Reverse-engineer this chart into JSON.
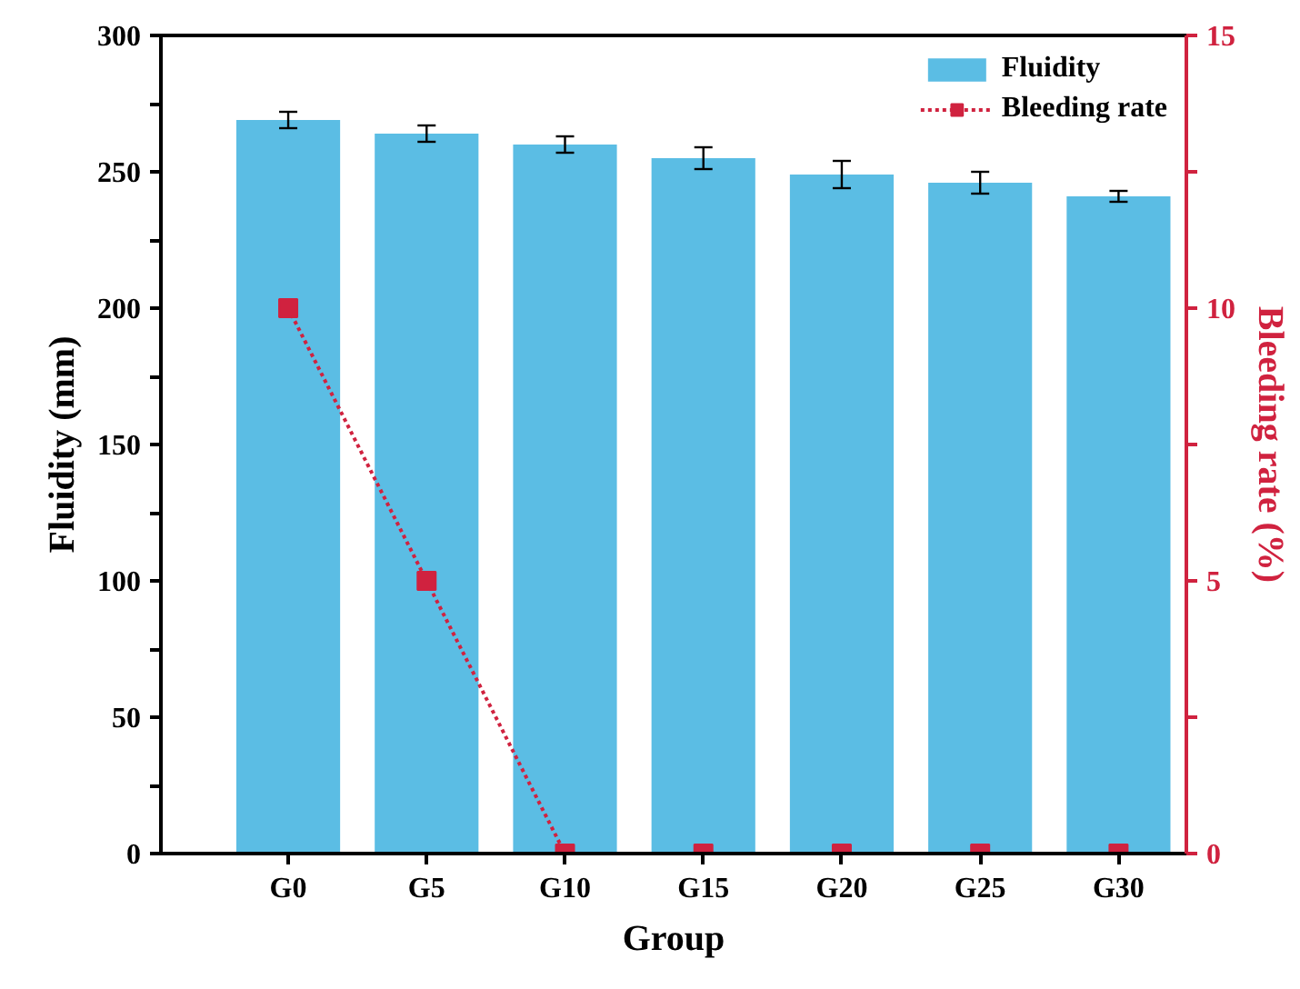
{
  "chart_data": {
    "type": "bar",
    "xlabel": "Group",
    "ylabel": "Fluidity (mm)",
    "y2label": "Bleeding rate (%)",
    "categories": [
      "G0",
      "G5",
      "G10",
      "G15",
      "G20",
      "G25",
      "G30"
    ],
    "series": [
      {
        "name": "Fluidity",
        "color": "#5bbde4",
        "values": [
          269,
          264,
          260,
          255,
          249,
          246,
          241
        ],
        "errors": [
          3,
          3,
          3,
          4,
          5,
          4,
          2
        ]
      },
      {
        "name": "Bleeding rate",
        "type": "line",
        "axis": "y2",
        "color": "#d0223f",
        "values": [
          10,
          5,
          0,
          0,
          0,
          0,
          0
        ],
        "marker": "square",
        "line_style": "dotted"
      }
    ],
    "ylim": [
      0,
      300
    ],
    "yticks": [
      0,
      {
        "value": 25,
        "label": null
      },
      50,
      {
        "value": 75,
        "label": null
      },
      100,
      {
        "value": 125,
        "label": null
      },
      150,
      {
        "value": 175,
        "label": null
      },
      200,
      {
        "value": 225,
        "label": null
      },
      250,
      {
        "value": 275,
        "label": null
      },
      300
    ],
    "y2lim": [
      0,
      15
    ],
    "y2ticks": [
      0,
      {
        "value": 2.5,
        "label": null
      },
      5,
      {
        "value": 7.5,
        "label": null
      },
      10,
      {
        "value": 12.5,
        "label": null
      },
      15
    ],
    "grid": false,
    "legend": "top right"
  }
}
